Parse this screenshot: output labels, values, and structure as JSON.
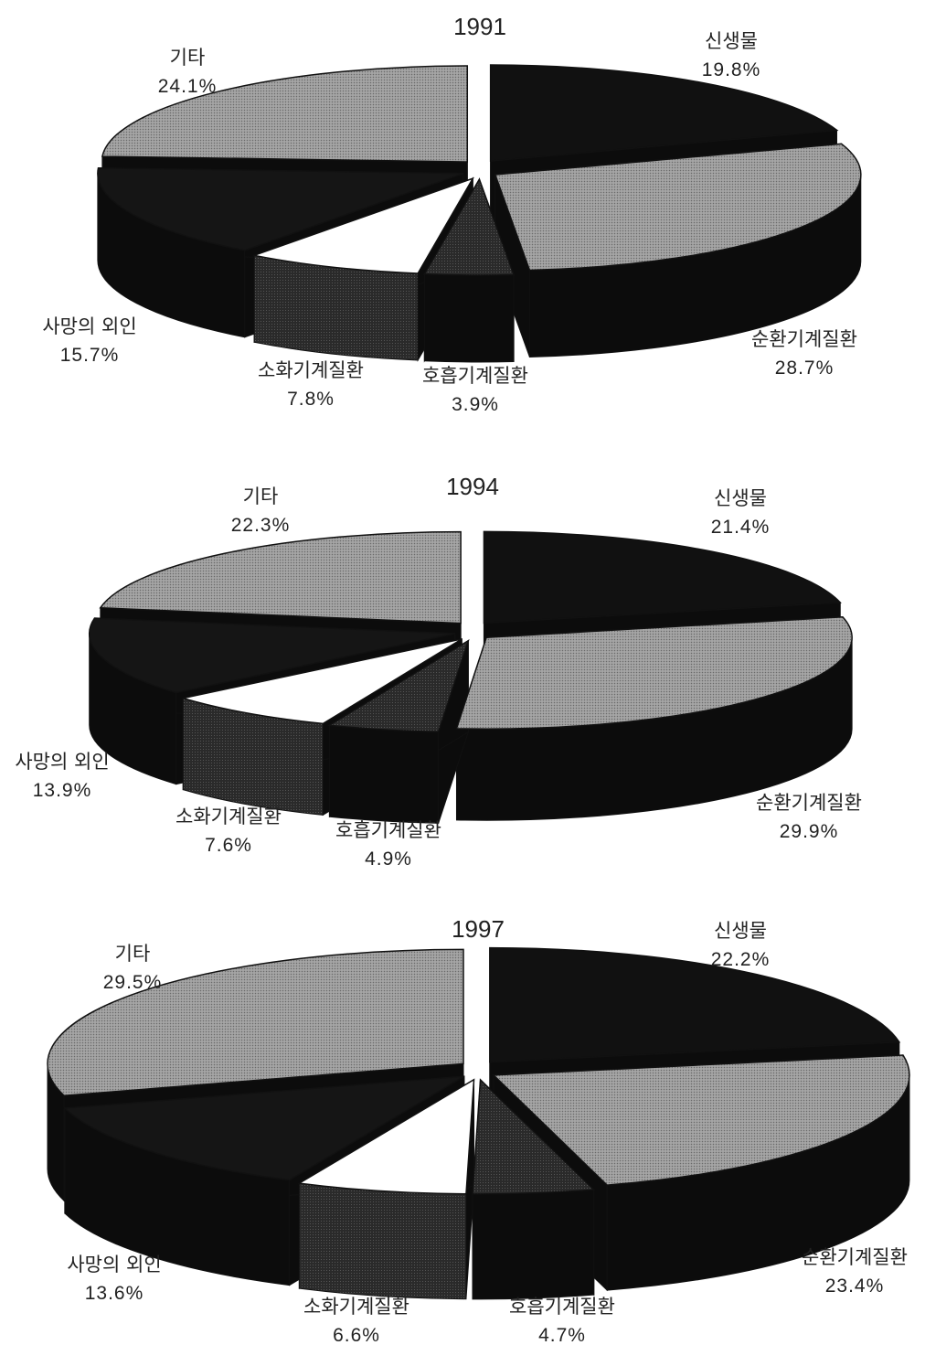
{
  "chart_data": [
    {
      "type": "pie",
      "title": "1991",
      "slices": [
        {
          "label": "신생물",
          "value": 19.8,
          "pct_text": "19.8%"
        },
        {
          "label": "순환기계질환",
          "value": 28.7,
          "pct_text": "28.7%"
        },
        {
          "label": "호흡기계질환",
          "value": 3.9,
          "pct_text": "3.9%"
        },
        {
          "label": "소화기계질환",
          "value": 7.8,
          "pct_text": "7.8%"
        },
        {
          "label": "사망의 외인",
          "value": 15.7,
          "pct_text": "15.7%"
        },
        {
          "label": "기타",
          "value": 24.1,
          "pct_text": "24.1%"
        }
      ]
    },
    {
      "type": "pie",
      "title": "1994",
      "slices": [
        {
          "label": "신생물",
          "value": 21.4,
          "pct_text": "21.4%"
        },
        {
          "label": "순환기계질환",
          "value": 29.9,
          "pct_text": "29.9%"
        },
        {
          "label": "호흡기계질환",
          "value": 4.9,
          "pct_text": "4.9%"
        },
        {
          "label": "소화기계질환",
          "value": 7.6,
          "pct_text": "7.6%"
        },
        {
          "label": "사망의 외인",
          "value": 13.9,
          "pct_text": "13.9%"
        },
        {
          "label": "기타",
          "value": 22.3,
          "pct_text": "22.3%"
        }
      ]
    },
    {
      "type": "pie",
      "title": "1997",
      "slices": [
        {
          "label": "신생물",
          "value": 22.2,
          "pct_text": "22.2%"
        },
        {
          "label": "순환기계질환",
          "value": 23.4,
          "pct_text": "23.4%"
        },
        {
          "label": "호흡기계질환",
          "value": 4.7,
          "pct_text": "4.7%"
        },
        {
          "label": "소화기계질환",
          "value": 6.6,
          "pct_text": "6.6%"
        },
        {
          "label": "사망의 외인",
          "value": 13.6,
          "pct_text": "13.6%"
        },
        {
          "label": "기타",
          "value": 29.5,
          "pct_text": "29.5%"
        }
      ]
    }
  ],
  "colors": {
    "신생물": "#111111",
    "순환기계질환": "#8a8a8a",
    "호흡기계질환": "#3c3c3c",
    "소화기계질환": "#ffffff",
    "사망의 외인": "#151515",
    "기타": "#8a8a8a",
    "side": "#0c0c0c",
    "stroke": "#111111"
  }
}
